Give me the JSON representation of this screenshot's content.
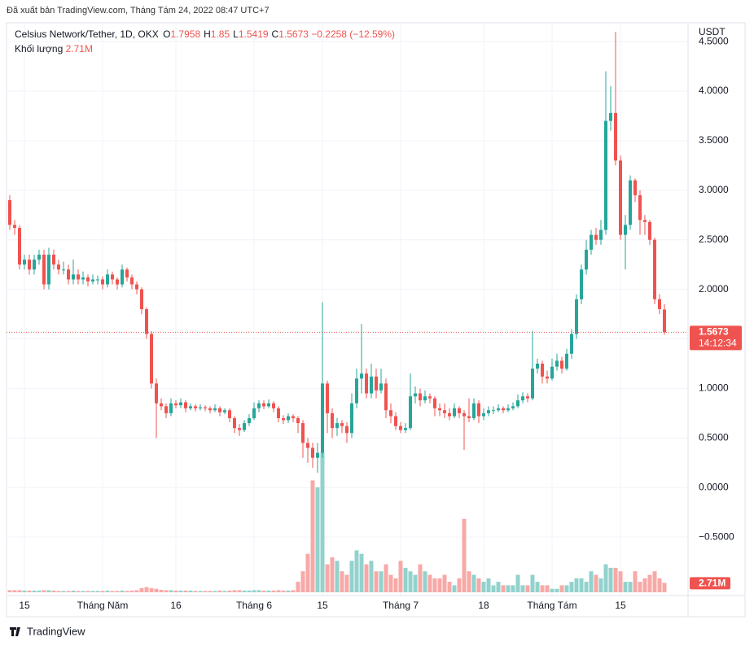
{
  "published": "Đã xuất bản TradingView.com, Tháng Tám 24, 2022 08:47 UTC+7",
  "footer": "TradingView",
  "chart_data": {
    "type": "candlestick",
    "title": "Celsius Network/Tether, 1D, OKX",
    "ohlc_letters": [
      "O",
      "H",
      "L",
      "C"
    ],
    "change": "−0.2258 (−12.59%)",
    "volume_title": "Khối lượng",
    "volume_label": "2.71M",
    "axis_unit": "USDT",
    "countdown": "14:12:34",
    "up_color": "#26a69a",
    "down_color": "#ef5350",
    "volume_up_color": "#92d2cc",
    "volume_down_color": "#f7a9a7",
    "grid": true,
    "ylim": [
      -1.09,
      4.69
    ],
    "yticks": [
      {
        "value": 4.5,
        "label": "4.5000"
      },
      {
        "value": 4.0,
        "label": "4.0000"
      },
      {
        "value": 3.5,
        "label": "3.5000"
      },
      {
        "value": 3.0,
        "label": "3.0000"
      },
      {
        "value": 2.5,
        "label": "2.5000"
      },
      {
        "value": 2.0,
        "label": "2.0000"
      },
      {
        "value": 1.5,
        "label": "1.5000"
      },
      {
        "value": 1.0,
        "label": "1.0000"
      },
      {
        "value": 0.5,
        "label": "0.5000"
      },
      {
        "value": 0,
        "label": "0.0000"
      },
      {
        "value": -0.5,
        "label": "−0.5000"
      }
    ],
    "categories": [
      null,
      null,
      null,
      "15",
      null,
      null,
      null,
      null,
      null,
      null,
      null,
      null,
      null,
      null,
      null,
      null,
      null,
      null,
      null,
      "Tháng Năm",
      null,
      null,
      null,
      null,
      null,
      null,
      null,
      null,
      null,
      null,
      null,
      null,
      null,
      null,
      "16",
      null,
      null,
      null,
      null,
      null,
      null,
      null,
      null,
      null,
      null,
      null,
      null,
      null,
      null,
      null,
      "Tháng 6",
      null,
      null,
      null,
      null,
      null,
      null,
      null,
      null,
      null,
      null,
      null,
      null,
      null,
      "15",
      null,
      null,
      null,
      null,
      null,
      null,
      null,
      null,
      null,
      null,
      null,
      null,
      null,
      null,
      null,
      "Tháng 7",
      null,
      null,
      null,
      null,
      null,
      null,
      null,
      null,
      null,
      null,
      null,
      null,
      null,
      null,
      null,
      null,
      "18",
      null,
      null,
      null,
      null,
      null,
      null,
      null,
      null,
      null,
      null,
      null,
      null,
      null,
      "Tháng Tám",
      null,
      null,
      null,
      null,
      null,
      null,
      null,
      null,
      null,
      null,
      null,
      null,
      null,
      "15",
      null,
      null,
      null,
      null,
      null,
      null,
      null,
      null,
      null
    ],
    "ohlc": [
      [
        2.9,
        2.95,
        2.6,
        2.65
      ],
      [
        2.65,
        2.7,
        2.55,
        2.62
      ],
      [
        2.62,
        2.65,
        2.2,
        2.25
      ],
      [
        2.25,
        2.35,
        2.2,
        2.3
      ],
      [
        2.3,
        2.35,
        2.15,
        2.2
      ],
      [
        2.2,
        2.35,
        2.15,
        2.3
      ],
      [
        2.3,
        2.4,
        2.25,
        2.35
      ],
      [
        2.35,
        2.4,
        2.0,
        2.05
      ],
      [
        2.05,
        2.42,
        2.0,
        2.35
      ],
      [
        2.35,
        2.4,
        2.2,
        2.25
      ],
      [
        2.25,
        2.3,
        2.15,
        2.2
      ],
      [
        2.2,
        2.28,
        2.15,
        2.2
      ],
      [
        2.2,
        2.25,
        2.05,
        2.1
      ],
      [
        2.1,
        2.3,
        2.05,
        2.15
      ],
      [
        2.15,
        2.2,
        2.05,
        2.1
      ],
      [
        2.1,
        2.18,
        2.05,
        2.12
      ],
      [
        2.12,
        2.15,
        2.03,
        2.08
      ],
      [
        2.08,
        2.15,
        2.05,
        2.1
      ],
      [
        2.1,
        2.14,
        2.05,
        2.1
      ],
      [
        2.1,
        2.13,
        2.0,
        2.05
      ],
      [
        2.05,
        2.2,
        2.02,
        2.15
      ],
      [
        2.15,
        2.18,
        2.05,
        2.1
      ],
      [
        2.1,
        2.12,
        2.0,
        2.05
      ],
      [
        2.05,
        2.25,
        2.02,
        2.2
      ],
      [
        2.2,
        2.22,
        2.08,
        2.12
      ],
      [
        2.12,
        2.15,
        2.0,
        2.05
      ],
      [
        2.05,
        2.08,
        1.95,
        2.0
      ],
      [
        2.0,
        2.02,
        1.75,
        1.8
      ],
      [
        1.8,
        1.82,
        1.5,
        1.55
      ],
      [
        1.55,
        1.58,
        1.0,
        1.05
      ],
      [
        1.05,
        1.1,
        0.5,
        0.85
      ],
      [
        0.85,
        0.9,
        0.78,
        0.82
      ],
      [
        0.82,
        0.85,
        0.7,
        0.75
      ],
      [
        0.75,
        0.9,
        0.72,
        0.85
      ],
      [
        0.85,
        0.88,
        0.8,
        0.83
      ],
      [
        0.83,
        0.9,
        0.8,
        0.86
      ],
      [
        0.86,
        0.88,
        0.76,
        0.8
      ],
      [
        0.8,
        0.85,
        0.78,
        0.82
      ],
      [
        0.82,
        0.84,
        0.77,
        0.8
      ],
      [
        0.8,
        0.84,
        0.78,
        0.81
      ],
      [
        0.81,
        0.83,
        0.77,
        0.8
      ],
      [
        0.8,
        0.82,
        0.75,
        0.78
      ],
      [
        0.78,
        0.84,
        0.76,
        0.8
      ],
      [
        0.8,
        0.82,
        0.72,
        0.76
      ],
      [
        0.76,
        0.8,
        0.74,
        0.78
      ],
      [
        0.78,
        0.8,
        0.66,
        0.7
      ],
      [
        0.7,
        0.72,
        0.55,
        0.6
      ],
      [
        0.6,
        0.64,
        0.52,
        0.58
      ],
      [
        0.58,
        0.68,
        0.56,
        0.65
      ],
      [
        0.65,
        0.74,
        0.62,
        0.7
      ],
      [
        0.7,
        0.86,
        0.68,
        0.8
      ],
      [
        0.8,
        0.88,
        0.76,
        0.85
      ],
      [
        0.85,
        0.88,
        0.79,
        0.82
      ],
      [
        0.82,
        0.89,
        0.8,
        0.85
      ],
      [
        0.85,
        0.87,
        0.76,
        0.8
      ],
      [
        0.8,
        0.82,
        0.66,
        0.7
      ],
      [
        0.7,
        0.73,
        0.64,
        0.68
      ],
      [
        0.68,
        0.75,
        0.65,
        0.72
      ],
      [
        0.72,
        0.74,
        0.66,
        0.7
      ],
      [
        0.7,
        0.72,
        0.55,
        0.65
      ],
      [
        0.65,
        0.68,
        0.3,
        0.45
      ],
      [
        0.45,
        0.5,
        0.25,
        0.4
      ],
      [
        0.4,
        0.45,
        0.2,
        0.3
      ],
      [
        0.3,
        0.45,
        0.15,
        0.35
      ],
      [
        0.35,
        1.87,
        0.3,
        1.05
      ],
      [
        1.05,
        1.08,
        0.55,
        0.75
      ],
      [
        0.75,
        0.8,
        0.5,
        0.6
      ],
      [
        0.6,
        0.7,
        0.52,
        0.65
      ],
      [
        0.65,
        0.68,
        0.55,
        0.62
      ],
      [
        0.62,
        0.66,
        0.45,
        0.55
      ],
      [
        0.55,
        0.95,
        0.5,
        0.85
      ],
      [
        0.85,
        1.2,
        0.8,
        1.1
      ],
      [
        1.1,
        1.65,
        0.95,
        1.15
      ],
      [
        1.15,
        1.2,
        0.9,
        0.95
      ],
      [
        0.95,
        1.25,
        0.9,
        1.12
      ],
      [
        1.12,
        1.2,
        0.9,
        0.98
      ],
      [
        0.98,
        1.2,
        0.95,
        1.05
      ],
      [
        1.05,
        1.1,
        0.7,
        0.78
      ],
      [
        0.78,
        0.85,
        0.65,
        0.72
      ],
      [
        0.72,
        0.76,
        0.58,
        0.62
      ],
      [
        0.62,
        0.66,
        0.55,
        0.58
      ],
      [
        0.58,
        0.65,
        0.55,
        0.6
      ],
      [
        0.6,
        1.15,
        0.58,
        0.92
      ],
      [
        0.92,
        1.02,
        0.85,
        0.95
      ],
      [
        0.95,
        1.0,
        0.82,
        0.88
      ],
      [
        0.88,
        0.98,
        0.85,
        0.92
      ],
      [
        0.92,
        0.95,
        0.85,
        0.9
      ],
      [
        0.9,
        0.92,
        0.72,
        0.8
      ],
      [
        0.8,
        0.85,
        0.72,
        0.78
      ],
      [
        0.78,
        0.85,
        0.7,
        0.75
      ],
      [
        0.75,
        0.8,
        0.68,
        0.72
      ],
      [
        0.72,
        0.85,
        0.7,
        0.8
      ],
      [
        0.8,
        0.82,
        0.7,
        0.75
      ],
      [
        0.75,
        0.78,
        0.38,
        0.72
      ],
      [
        0.72,
        0.9,
        0.66,
        0.7
      ],
      [
        0.7,
        0.9,
        0.68,
        0.85
      ],
      [
        0.85,
        0.88,
        0.65,
        0.72
      ],
      [
        0.72,
        0.8,
        0.68,
        0.75
      ],
      [
        0.75,
        0.82,
        0.72,
        0.78
      ],
      [
        0.78,
        0.82,
        0.74,
        0.78
      ],
      [
        0.78,
        0.84,
        0.76,
        0.8
      ],
      [
        0.8,
        0.82,
        0.75,
        0.78
      ],
      [
        0.78,
        0.84,
        0.76,
        0.8
      ],
      [
        0.8,
        0.86,
        0.78,
        0.82
      ],
      [
        0.82,
        0.94,
        0.8,
        0.88
      ],
      [
        0.88,
        0.96,
        0.85,
        0.92
      ],
      [
        0.92,
        0.95,
        0.86,
        0.9
      ],
      [
        0.9,
        1.58,
        0.88,
        1.2
      ],
      [
        1.2,
        1.3,
        1.15,
        1.25
      ],
      [
        1.25,
        1.28,
        1.05,
        1.12
      ],
      [
        1.12,
        1.18,
        1.05,
        1.1
      ],
      [
        1.1,
        1.3,
        1.08,
        1.22
      ],
      [
        1.22,
        1.35,
        1.18,
        1.28
      ],
      [
        1.28,
        1.32,
        1.15,
        1.2
      ],
      [
        1.2,
        1.4,
        1.18,
        1.35
      ],
      [
        1.35,
        1.6,
        1.3,
        1.55
      ],
      [
        1.55,
        1.95,
        1.5,
        1.9
      ],
      [
        1.9,
        2.25,
        1.85,
        2.2
      ],
      [
        2.2,
        2.5,
        2.15,
        2.4
      ],
      [
        2.4,
        2.6,
        2.35,
        2.55
      ],
      [
        2.55,
        2.62,
        2.45,
        2.5
      ],
      [
        2.5,
        2.7,
        2.45,
        2.6
      ],
      [
        2.6,
        4.2,
        2.55,
        3.7
      ],
      [
        3.7,
        4.05,
        3.6,
        3.78
      ],
      [
        3.78,
        4.6,
        3.25,
        3.3
      ],
      [
        3.3,
        3.35,
        2.5,
        2.55
      ],
      [
        2.55,
        2.75,
        2.2,
        2.65
      ],
      [
        2.65,
        3.15,
        2.6,
        3.1
      ],
      [
        3.1,
        3.12,
        2.88,
        2.95
      ],
      [
        2.95,
        3.0,
        2.55,
        2.7
      ],
      [
        2.7,
        2.75,
        2.55,
        2.68
      ],
      [
        2.68,
        2.7,
        2.45,
        2.5
      ],
      [
        2.5,
        2.52,
        1.85,
        1.9
      ],
      [
        1.9,
        1.95,
        1.75,
        1.8
      ],
      [
        1.7958,
        1.85,
        1.5419,
        1.5673
      ]
    ],
    "volumes": [
      0.6,
      0.6,
      0.6,
      0.5,
      0.5,
      0.5,
      0.5,
      0.6,
      0.6,
      0.5,
      0.4,
      0.4,
      0.4,
      0.5,
      0.4,
      0.4,
      0.4,
      0.4,
      0.4,
      0.4,
      0.5,
      0.4,
      0.4,
      0.5,
      0.4,
      0.5,
      0.6,
      1.2,
      1.5,
      1.2,
      1.0,
      0.7,
      0.6,
      0.6,
      0.5,
      0.5,
      0.5,
      0.5,
      0.4,
      0.4,
      0.4,
      0.4,
      0.4,
      0.5,
      0.4,
      0.5,
      0.6,
      0.6,
      0.5,
      0.5,
      0.6,
      0.6,
      0.5,
      0.5,
      0.5,
      0.6,
      0.5,
      0.5,
      0.6,
      3,
      6,
      11,
      32,
      30,
      40,
      8,
      10,
      9,
      6,
      5,
      9,
      12,
      11,
      8,
      9,
      6,
      6,
      8,
      5,
      4,
      9,
      7,
      6,
      5,
      8,
      6,
      5,
      4,
      4,
      5,
      3,
      2,
      4,
      21,
      6,
      5,
      4,
      3,
      4,
      2,
      3,
      2,
      2,
      2,
      5,
      2,
      2,
      5,
      3,
      2,
      2,
      1,
      1,
      2,
      2,
      3,
      4,
      4,
      3,
      6,
      5,
      4,
      8,
      7,
      7,
      6,
      3,
      3,
      6,
      3,
      4,
      5,
      6,
      4,
      2.71
    ]
  }
}
